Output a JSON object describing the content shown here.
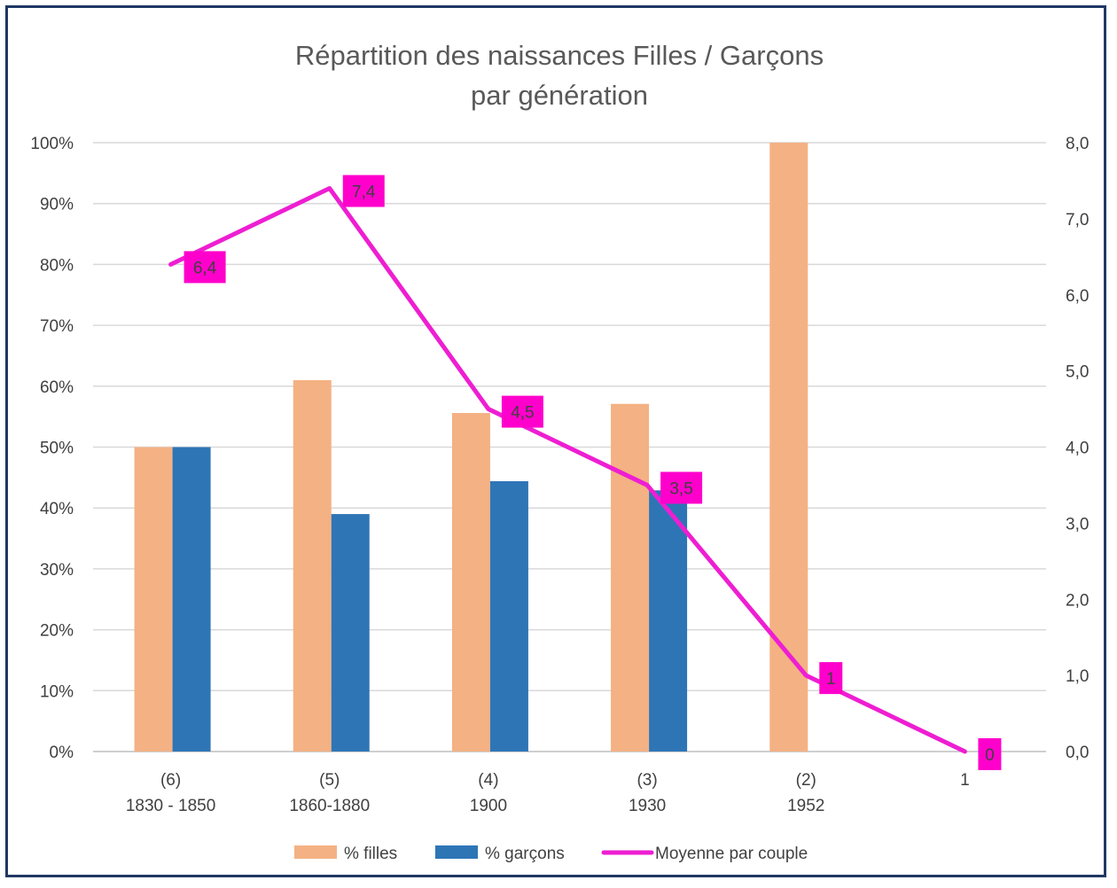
{
  "chart_data": {
    "type": "bar",
    "title": [
      "Répartition des naissances Filles / Garçons",
      "par génération"
    ],
    "categories": [
      [
        "(6)",
        "1830 - 1850"
      ],
      [
        "(5)",
        "1860-1880"
      ],
      [
        "(4)",
        "1900"
      ],
      [
        "(3)",
        "1930"
      ],
      [
        "(2)",
        "1952"
      ],
      [
        "1"
      ]
    ],
    "series": [
      {
        "name": "% filles",
        "kind": "bar",
        "axis": "left",
        "color": "#f4b183",
        "values": [
          0.5,
          0.61,
          0.556,
          0.571,
          1.0,
          null
        ]
      },
      {
        "name": "% garçons",
        "kind": "bar",
        "axis": "left",
        "color": "#2e75b6",
        "values": [
          0.5,
          0.39,
          0.444,
          0.429,
          null,
          null
        ]
      },
      {
        "name": "Moyenne par couple",
        "kind": "line",
        "axis": "right",
        "color": "#ee1ed2",
        "values": [
          6.4,
          7.4,
          4.5,
          3.5,
          1.0,
          0.0
        ],
        "labels": [
          "6,4",
          "7,4",
          "4,5",
          "3,5",
          "1",
          "0"
        ],
        "label_color": "#ff00cc"
      }
    ],
    "y_left": {
      "range": [
        0,
        1
      ],
      "ticks": [
        "0%",
        "10%",
        "20%",
        "30%",
        "40%",
        "50%",
        "60%",
        "70%",
        "80%",
        "90%",
        "100%"
      ]
    },
    "y_right": {
      "range": [
        0,
        8
      ],
      "ticks": [
        "0,0",
        "1,0",
        "2,0",
        "3,0",
        "4,0",
        "5,0",
        "6,0",
        "7,0",
        "8,0"
      ]
    },
    "grid": true,
    "legend_position": "bottom"
  }
}
